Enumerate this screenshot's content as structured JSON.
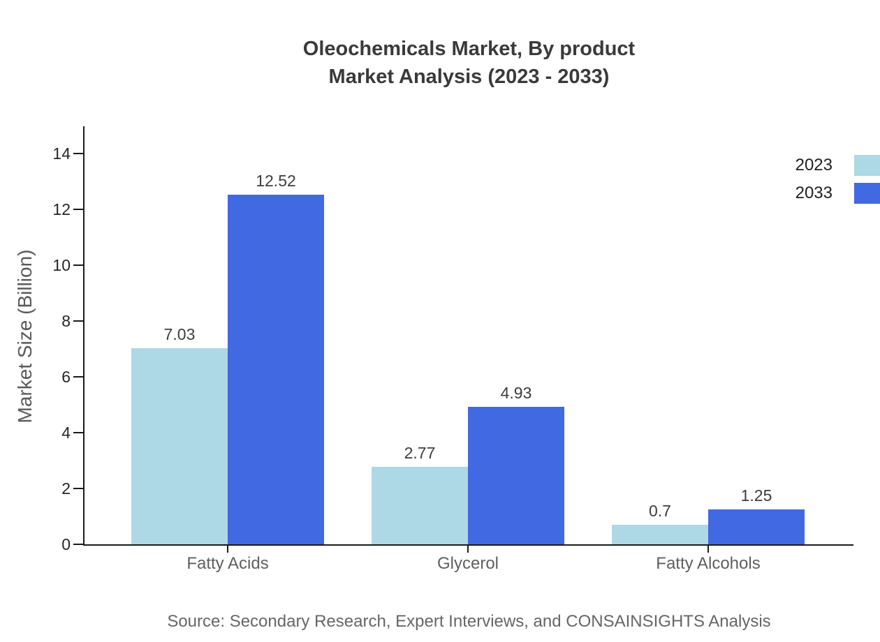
{
  "chart_data": {
    "type": "bar",
    "title_lines": [
      "Oleochemicals Market, By product",
      "Market Analysis (2023 - 2033)"
    ],
    "title": "Oleochemicals Market, By product Market Analysis (2023 - 2033)",
    "categories": [
      "Fatty Acids",
      "Glycerol",
      "Fatty Alcohols"
    ],
    "series": [
      {
        "name": "2023",
        "color": "#ADD8E6",
        "values": [
          7.03,
          2.77,
          0.7
        ]
      },
      {
        "name": "2033",
        "color": "#4169E1",
        "values": [
          12.52,
          4.93,
          1.25
        ]
      }
    ],
    "value_labels": [
      [
        "7.03",
        "2.77",
        "0.7"
      ],
      [
        "12.52",
        "4.93",
        "1.25"
      ]
    ],
    "xlabel": "",
    "ylabel": "Market Size (Billion)",
    "ylim": [
      0,
      15
    ],
    "yticks": [
      0,
      2,
      4,
      6,
      8,
      10,
      12,
      14
    ],
    "grid": false,
    "legend_position": "top-right",
    "colors": {
      "series_2023": "#ADD8E6",
      "series_2033": "#4169E1",
      "axis": "#1a1a1a",
      "title_text": "#3a3a3a",
      "category_text": "#5f5f5f",
      "source_text": "#666666"
    }
  },
  "source_text": "Source: Secondary Research, Expert Interviews, and CONSAINSIGHTS Analysis"
}
